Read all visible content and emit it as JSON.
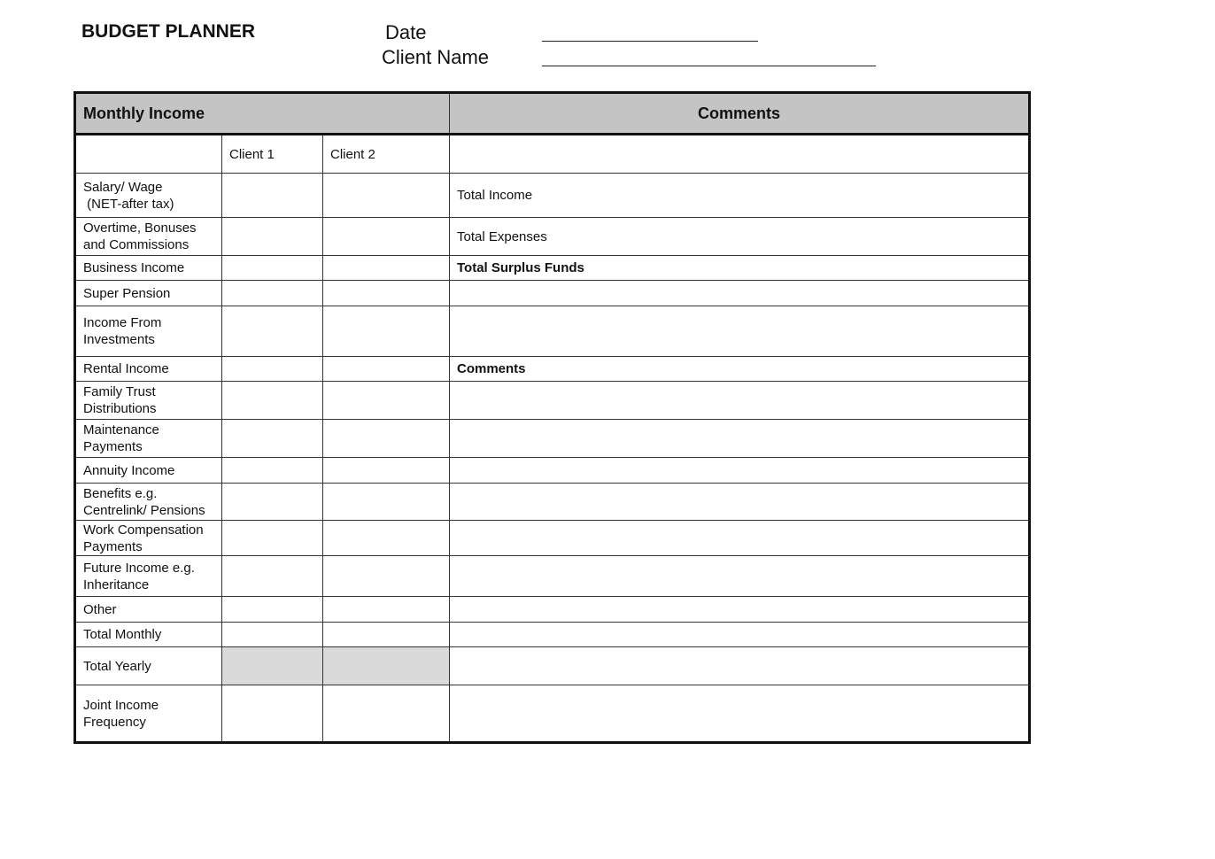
{
  "header": {
    "title": "BUDGET PLANNER",
    "date_label": "Date",
    "client_name_label": "Client Name"
  },
  "table": {
    "section_title": "Monthly Income",
    "comments_header": "Comments",
    "columns": [
      "",
      "Client 1",
      "Client 2",
      ""
    ],
    "rows": [
      {
        "label": "Salary/ Wage\n (NET-after tax)",
        "comment": "Total Income",
        "bold": false
      },
      {
        "label": "Overtime, Bonuses\nand Commissions",
        "comment": "Total Expenses",
        "bold": false
      },
      {
        "label": "Business Income",
        "comment": "Total Surplus Funds",
        "bold": true
      },
      {
        "label": "Super Pension",
        "comment": "",
        "bold": false
      },
      {
        "label": "Income From\nInvestments",
        "comment": "",
        "bold": false
      },
      {
        "label": "Rental Income",
        "comment": "Comments",
        "bold": true
      },
      {
        "label": "Family Trust\nDistributions",
        "comment": "",
        "bold": false
      },
      {
        "label": "Maintenance\nPayments",
        "comment": "",
        "bold": false
      },
      {
        "label": "Annuity Income",
        "comment": "",
        "bold": false
      },
      {
        "label": "Benefits e.g.\nCentrelink/ Pensions",
        "comment": "",
        "bold": false
      },
      {
        "label": "Work Compensation\nPayments",
        "comment": "",
        "bold": false
      },
      {
        "label": "Future Income e.g.\nInheritance",
        "comment": "",
        "bold": false
      },
      {
        "label": "Other",
        "comment": "",
        "bold": false
      },
      {
        "label": "Total Monthly",
        "comment": "",
        "bold": false
      },
      {
        "label": "Total Yearly",
        "comment": "",
        "bold": false,
        "shaded": true
      },
      {
        "label": "Joint Income\nFrequency",
        "comment": "",
        "bold": false
      }
    ]
  },
  "colors": {
    "header_bg": "#c4c4c4",
    "shaded_cell": "#dadada"
  }
}
